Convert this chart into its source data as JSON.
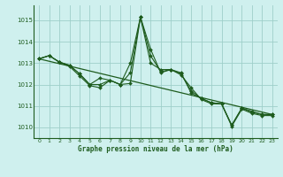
{
  "title": "Graphe pression niveau de la mer (hPa)",
  "bg_color": "#cff0ee",
  "grid_color": "#9ecfca",
  "line_color": "#1e5c1e",
  "ylim": [
    1009.5,
    1015.7
  ],
  "xlim": [
    -0.5,
    23.5
  ],
  "yticks": [
    1010,
    1011,
    1012,
    1013,
    1014,
    1015
  ],
  "xticks": [
    0,
    1,
    2,
    3,
    4,
    5,
    6,
    7,
    8,
    9,
    10,
    11,
    12,
    13,
    14,
    15,
    16,
    17,
    18,
    19,
    20,
    21,
    22,
    23
  ],
  "series1": [
    1013.2,
    1013.35,
    1013.05,
    1012.9,
    1012.5,
    1012.0,
    1012.3,
    1012.2,
    1012.0,
    1013.0,
    1015.15,
    1013.0,
    1012.7,
    1012.7,
    1012.55,
    1011.6,
    1011.35,
    1011.15,
    1011.1,
    1010.1,
    1010.9,
    1010.75,
    1010.6,
    1010.6
  ],
  "series2": [
    1013.2,
    1013.35,
    1013.05,
    1012.85,
    1012.4,
    1011.95,
    1011.85,
    1012.2,
    1012.0,
    1012.05,
    1015.15,
    1013.65,
    1012.55,
    1012.7,
    1012.45,
    1011.85,
    1011.3,
    1011.1,
    1011.1,
    1010.05,
    1010.85,
    1010.65,
    1010.55,
    1010.55
  ],
  "series3": [
    1013.2,
    1013.35,
    1013.05,
    1012.9,
    1012.5,
    1012.0,
    1012.0,
    1012.2,
    1012.0,
    1012.55,
    1015.15,
    1013.35,
    1012.6,
    1012.7,
    1012.5,
    1011.7,
    1011.35,
    1011.15,
    1011.1,
    1010.1,
    1010.9,
    1010.7,
    1010.6,
    1010.6
  ],
  "trend_x": [
    0,
    23
  ],
  "trend_y": [
    1013.2,
    1010.6
  ]
}
